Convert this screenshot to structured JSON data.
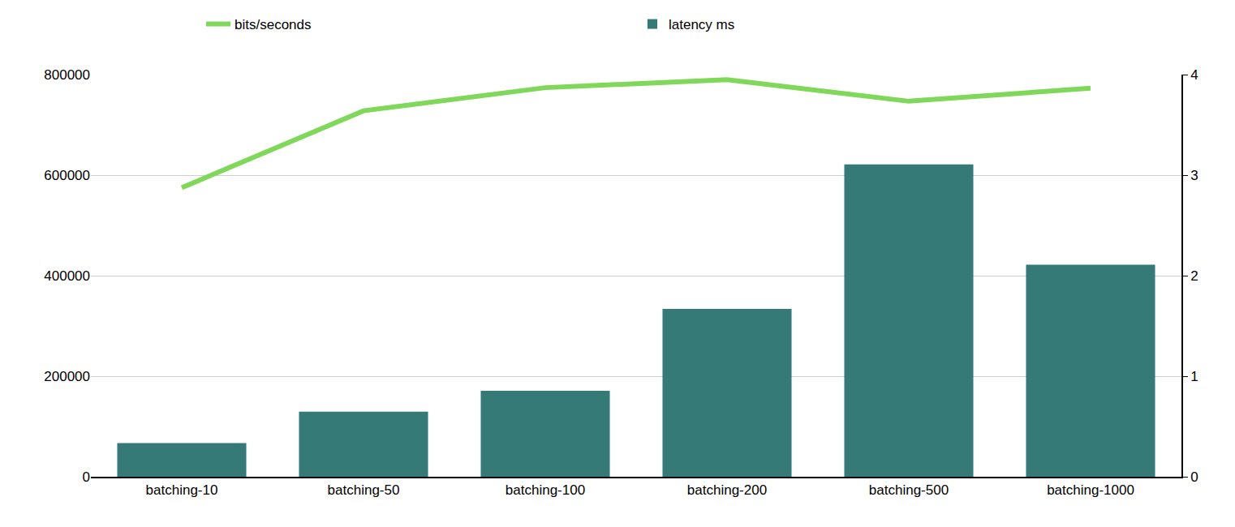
{
  "chart_data": {
    "type": "bar",
    "categories": [
      "batching-10",
      "batching-50",
      "batching-100",
      "batching-200",
      "batching-500",
      "batching-1000"
    ],
    "series": [
      {
        "name": "bits/seconds",
        "type": "line",
        "color": "#80d85a",
        "values": [
          575000,
          728000,
          774000,
          790000,
          747000,
          773000
        ]
      },
      {
        "name": "latency ms",
        "type": "bar",
        "color": "#357a77",
        "axis": "y2",
        "values": [
          0.335,
          0.647,
          0.854,
          1.669,
          3.106,
          2.108
        ]
      }
    ],
    "ylim": [
      0,
      800000
    ],
    "yticks": [
      0,
      200000,
      400000,
      600000,
      800000
    ],
    "y2lim": [
      0,
      4
    ],
    "y2ticks": [
      0,
      1,
      2,
      3,
      4
    ],
    "grid": true,
    "legend": "top"
  }
}
